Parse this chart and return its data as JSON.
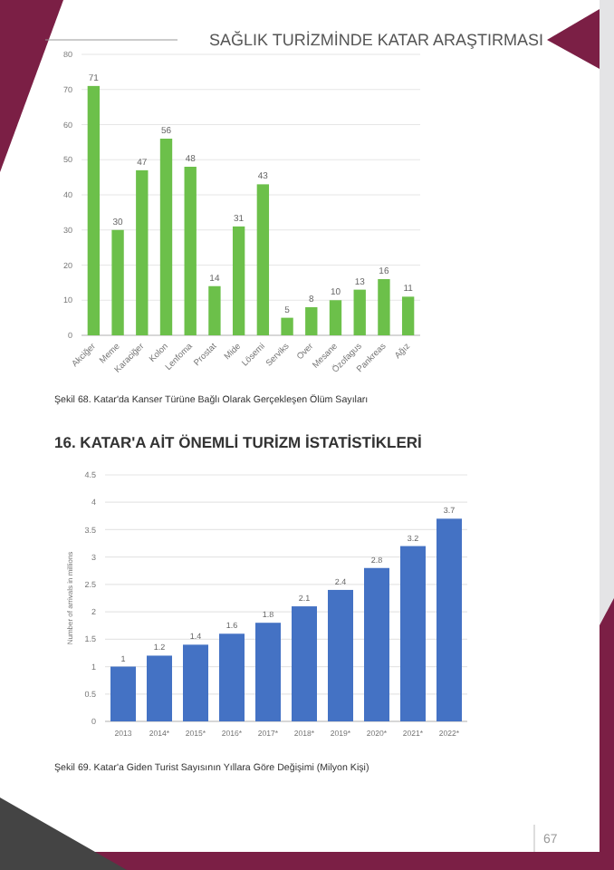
{
  "chart_data": [
    {
      "type": "bar",
      "annotations": [
        "SAĞLIK TURİZMİNDE KATAR ARAŞTIRMASI",
        "Şekil 68. Katar'da Kanser Türüne Bağlı Olarak Gerçekleşen Ölüm Sayıları"
      ],
      "categories": [
        "Akciğer",
        "Meme",
        "Karaciğer",
        "Kolon",
        "Lenfoma",
        "Prostat",
        "Mide",
        "Lösemi",
        "Serviks",
        "Over",
        "Mesane",
        "Özofagus",
        "Pankreas",
        "Ağız"
      ],
      "values": [
        71,
        30,
        47,
        56,
        48,
        14,
        31,
        43,
        5,
        8,
        10,
        13,
        16,
        11
      ],
      "color": "#6cc04a",
      "ylim": [
        0,
        80
      ],
      "yticks": [
        0,
        10,
        20,
        30,
        40,
        50,
        60,
        70,
        80
      ],
      "grid": "y",
      "data_labels": true
    },
    {
      "type": "bar",
      "title": "16. KATAR'A AİT ÖNEMLİ TURİZM İSTATİSTİKLERİ",
      "ylabel": "Number of arrivals in millions",
      "annotations": [
        "Şekil 69. Katar'a Giden Turist Sayısının Yıllara Göre Değişimi (Milyon Kişi)",
        "67"
      ],
      "categories": [
        "2013",
        "2014*",
        "2015*",
        "2016*",
        "2017*",
        "2018*",
        "2019*",
        "2020*",
        "2021*",
        "2022*"
      ],
      "values": [
        1,
        1.2,
        1.4,
        1.6,
        1.8,
        2.1,
        2.4,
        2.8,
        3.2,
        3.7
      ],
      "color": "#4472c4",
      "ylim": [
        0,
        4.5
      ],
      "yticks": [
        0,
        0.5,
        1,
        1.5,
        2,
        2.5,
        3,
        3.5,
        4,
        4.5
      ],
      "grid": "y",
      "data_labels": true
    }
  ]
}
